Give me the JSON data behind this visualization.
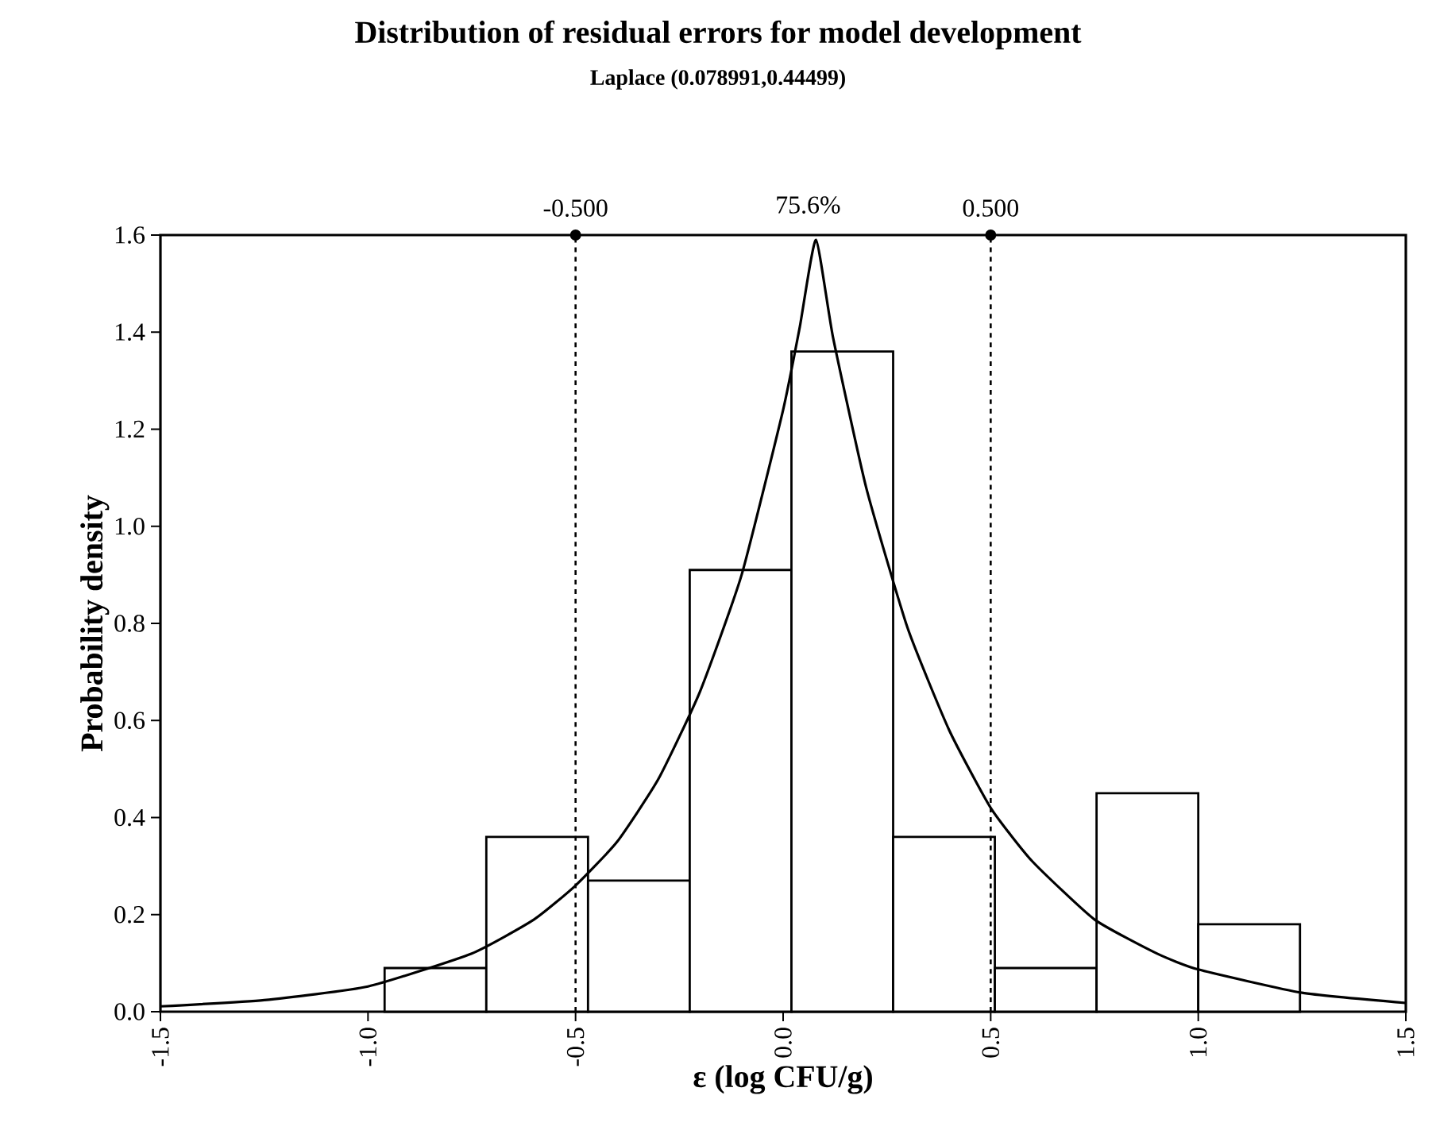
{
  "chart_data": {
    "type": "histogram",
    "title": "Distribution of residual errors for model development",
    "subtitle": "Laplace (0.078991,0.44499)",
    "xlabel": "ε (log CFU/g)",
    "ylabel": "Probability density",
    "series": [
      {
        "type": "histogram",
        "color": "#ffffff",
        "bins": [
          -0.96,
          -0.715,
          -0.47,
          -0.225,
          0.02,
          0.265,
          0.51,
          0.755,
          1.0,
          1.245
        ],
        "values": [
          0.09,
          0.36,
          0.27,
          0.91,
          1.36,
          0.36,
          0.09,
          0.45,
          0.18
        ]
      },
      {
        "type": "line",
        "color": "#000000",
        "x": [
          -1.5,
          -1.25,
          -1.0,
          -0.75,
          -0.6,
          -0.5,
          -0.4,
          -0.3,
          -0.2,
          -0.1,
          0.0,
          0.04,
          0.079,
          0.12,
          0.2,
          0.3,
          0.4,
          0.5,
          0.6,
          0.75,
          0.9,
          1.0,
          1.25,
          1.5
        ],
        "values": [
          0.011,
          0.024,
          0.052,
          0.12,
          0.19,
          0.26,
          0.35,
          0.48,
          0.66,
          0.9,
          1.24,
          1.41,
          1.59,
          1.39,
          1.08,
          0.79,
          0.58,
          0.42,
          0.31,
          0.19,
          0.12,
          0.087,
          0.039,
          0.018
        ]
      }
    ],
    "xlim": [
      -1.5,
      1.5
    ],
    "ylim": [
      0,
      1.6
    ],
    "xticks": [
      {
        "value": -1.5,
        "label": "-1.5"
      },
      {
        "value": -1.0,
        "label": "-1.0"
      },
      {
        "value": -0.5,
        "label": "-0.5"
      },
      {
        "value": 0,
        "label": "0.0"
      },
      {
        "value": 0.5,
        "label": "0.5"
      },
      {
        "value": 1.0,
        "label": "1.0"
      },
      {
        "value": 1.5,
        "label": "1.5"
      }
    ],
    "yticks": [
      {
        "value": 0,
        "label": "0.0"
      },
      {
        "value": 0.2,
        "label": "0.2"
      },
      {
        "value": 0.4,
        "label": "0.4"
      },
      {
        "value": 0.6,
        "label": "0.6"
      },
      {
        "value": 0.8,
        "label": "0.8"
      },
      {
        "value": 1.0,
        "label": "1.0"
      },
      {
        "value": 1.2,
        "label": "1.2"
      },
      {
        "value": 1.4,
        "label": "1.4"
      },
      {
        "value": 1.6,
        "label": "1.6"
      }
    ],
    "ref_lines": [
      {
        "axis": "x",
        "value": -0.5,
        "label": "-0.500",
        "line_style": "dashed"
      },
      {
        "axis": "x",
        "value": 0.5,
        "label": "0.500",
        "line_style": "dashed"
      }
    ],
    "annotations": [
      "75.6%"
    ]
  }
}
